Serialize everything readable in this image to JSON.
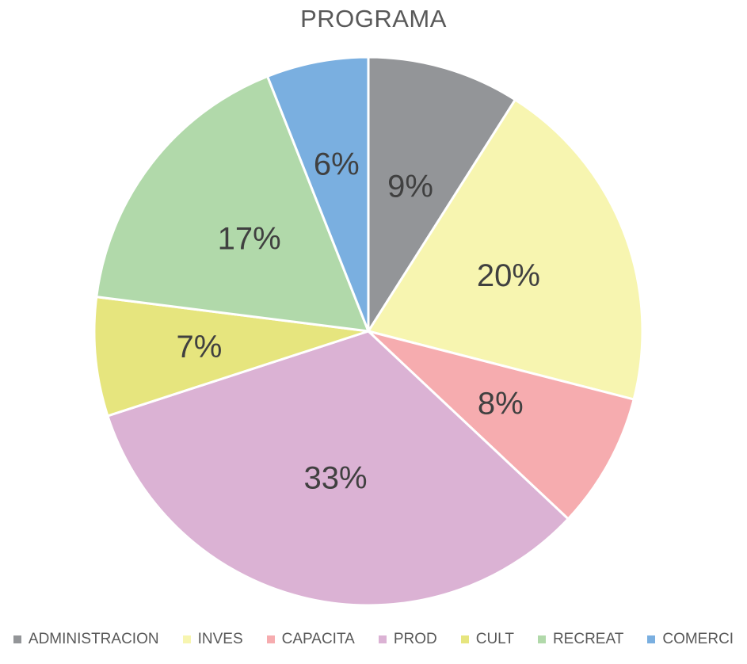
{
  "chart_data": {
    "type": "pie",
    "title": "PROGRAMA",
    "legend_position": "bottom",
    "slices": [
      {
        "name": "ADMINISTRACION",
        "value": 9,
        "label": "9%",
        "color": "#939598"
      },
      {
        "name": "INVES",
        "value": 20,
        "label": "20%",
        "color": "#f7f5b0"
      },
      {
        "name": "CAPACITA",
        "value": 8,
        "label": "8%",
        "color": "#f6acaf"
      },
      {
        "name": "PROD",
        "value": 33,
        "label": "33%",
        "color": "#dbb2d4"
      },
      {
        "name": "CULT",
        "value": 7,
        "label": "7%",
        "color": "#e6e57e"
      },
      {
        "name": "RECREAT",
        "value": 17,
        "label": "17%",
        "color": "#b1d9aa"
      },
      {
        "name": "COMERCI",
        "value": 6,
        "label": "6%",
        "color": "#7aafe0"
      }
    ]
  }
}
